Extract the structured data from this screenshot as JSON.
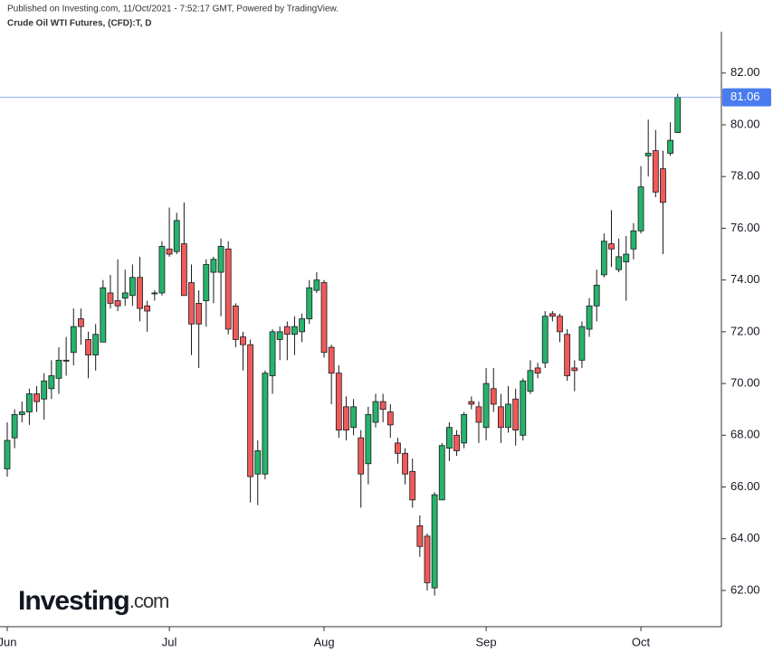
{
  "chart_data": {
    "type": "candlestick",
    "published": "Published on Investing.com, 11/Oct/2021 - 7:52:17 GMT, Powered by TradingView.",
    "title": "Crude Oil WTI Futures, (CFD):T, D",
    "brand": "Investing",
    "brand_suffix": ".com",
    "up_color": "#26b36d",
    "down_color": "#ef5a5a",
    "outline_color": "#1a1a1a",
    "price_line": 81.06,
    "price_line_color": "#4a7cf0",
    "categories": [
      "Jun",
      null,
      null,
      null,
      null,
      null,
      null,
      null,
      null,
      null,
      null,
      null,
      null,
      null,
      null,
      null,
      null,
      null,
      null,
      null,
      null,
      null,
      "Jul",
      null,
      null,
      null,
      null,
      null,
      null,
      null,
      null,
      null,
      null,
      null,
      null,
      null,
      null,
      null,
      null,
      null,
      null,
      null,
      null,
      "Aug",
      null,
      null,
      null,
      null,
      null,
      null,
      null,
      null,
      null,
      null,
      null,
      null,
      null,
      null,
      null,
      null,
      null,
      null,
      null,
      null,
      null,
      "Sep",
      null,
      null,
      null,
      null,
      null,
      null,
      null,
      null,
      null,
      null,
      null,
      null,
      null,
      null,
      null,
      null,
      null,
      null,
      null,
      null,
      "Oct",
      null,
      null,
      null,
      null,
      null
    ],
    "open": [
      66.7,
      67.9,
      68.8,
      68.9,
      69.6,
      69.4,
      69.8,
      70.2,
      70.9,
      71.2,
      72.5,
      71.7,
      71.1,
      71.6,
      73.5,
      73.2,
      73.3,
      73.4,
      74.1,
      73.0,
      73.5,
      73.5,
      75.2,
      75.1,
      75.4,
      73.9,
      73.1,
      73.2,
      74.3,
      74.3,
      75.2,
      73.0,
      71.8,
      71.5,
      66.5,
      66.5,
      70.3,
      71.7,
      72.2,
      71.9,
      72.0,
      72.5,
      73.6,
      73.9,
      71.4,
      70.4,
      69.1,
      68.3,
      67.9,
      66.9,
      68.5,
      69.3,
      68.9,
      67.7,
      67.3,
      66.6,
      64.5,
      64.1,
      62.1,
      65.5,
      67.5,
      68.0,
      67.7,
      69.3,
      69.1,
      68.3,
      69.8,
      69.1,
      68.3,
      69.4,
      68.0,
      69.7,
      70.6,
      70.8,
      72.7,
      72.6,
      71.9,
      70.6,
      70.9,
      72.1,
      73.0,
      74.2,
      75.4,
      74.4,
      74.7,
      75.2,
      75.9,
      78.8,
      79.0,
      78.3,
      78.9,
      79.7
    ],
    "high": [
      68.5,
      69.0,
      69.3,
      69.8,
      69.9,
      70.4,
      70.9,
      71.4,
      71.8,
      72.9,
      72.9,
      72.0,
      72.3,
      74.0,
      74.2,
      74.8,
      74.4,
      74.6,
      74.9,
      73.2,
      73.6,
      75.5,
      76.8,
      76.6,
      77.0,
      74.6,
      73.6,
      74.8,
      74.9,
      75.6,
      75.5,
      73.1,
      72.0,
      71.7,
      67.8,
      70.5,
      72.1,
      72.2,
      72.4,
      72.6,
      72.7,
      74.0,
      74.3,
      74.0,
      71.5,
      70.7,
      69.5,
      69.4,
      68.2,
      69.1,
      69.6,
      69.6,
      69.2,
      67.9,
      67.5,
      67.1,
      64.9,
      64.2,
      65.8,
      67.7,
      68.5,
      68.2,
      68.9,
      69.5,
      69.3,
      70.6,
      70.6,
      69.6,
      69.9,
      69.8,
      70.2,
      70.9,
      70.8,
      72.8,
      72.8,
      72.7,
      72.1,
      70.9,
      72.4,
      73.3,
      74.4,
      75.8,
      76.7,
      75.6,
      75.7,
      76.2,
      78.4,
      80.2,
      79.8,
      79.0,
      80.1,
      81.2
    ],
    "low": [
      66.4,
      67.5,
      68.5,
      68.4,
      68.9,
      68.6,
      69.4,
      69.6,
      70.3,
      70.7,
      71.5,
      70.2,
      70.5,
      71.6,
      72.9,
      72.8,
      73.0,
      73.0,
      72.4,
      72.0,
      73.2,
      73.4,
      74.9,
      75.0,
      73.4,
      71.1,
      70.6,
      72.2,
      73.1,
      72.6,
      71.9,
      71.4,
      70.5,
      65.4,
      65.3,
      66.3,
      69.6,
      70.9,
      70.9,
      71.1,
      71.6,
      72.3,
      73.5,
      71.0,
      69.2,
      67.9,
      67.8,
      68.0,
      65.2,
      66.1,
      68.3,
      68.5,
      67.9,
      66.9,
      66.1,
      65.2,
      63.3,
      62.0,
      61.8,
      65.5,
      67.0,
      67.2,
      67.5,
      69.0,
      67.7,
      67.8,
      68.9,
      67.7,
      68.1,
      67.6,
      67.8,
      69.6,
      70.2,
      70.6,
      72.4,
      71.6,
      70.1,
      69.7,
      70.6,
      71.8,
      72.4,
      74.1,
      74.5,
      74.3,
      73.2,
      74.8,
      75.8,
      78.0,
      77.2,
      75.0,
      78.8,
      79.7
    ],
    "close": [
      67.8,
      68.8,
      68.9,
      69.6,
      69.3,
      70.1,
      70.3,
      70.9,
      70.9,
      72.2,
      72.2,
      71.1,
      71.9,
      73.7,
      73.1,
      73.0,
      73.5,
      74.1,
      72.9,
      72.8,
      73.5,
      75.3,
      75.0,
      76.3,
      73.4,
      72.3,
      72.3,
      74.6,
      74.8,
      75.3,
      72.1,
      71.7,
      71.5,
      66.4,
      67.4,
      70.4,
      72.0,
      72.0,
      71.9,
      72.2,
      72.5,
      73.7,
      74.0,
      71.2,
      70.4,
      68.2,
      68.2,
      69.1,
      66.5,
      68.8,
      69.3,
      69.0,
      68.4,
      67.3,
      66.5,
      65.5,
      63.7,
      62.3,
      65.7,
      67.6,
      68.3,
      67.4,
      68.8,
      69.2,
      68.5,
      70.0,
      69.2,
      68.3,
      69.2,
      68.2,
      70.1,
      70.5,
      70.4,
      72.6,
      72.6,
      72.0,
      70.3,
      70.5,
      72.2,
      73.0,
      73.8,
      75.5,
      75.2,
      74.9,
      75.0,
      75.9,
      77.6,
      78.9,
      77.4,
      77.0,
      79.4,
      81.06
    ],
    "ylim": [
      60.6,
      83.6
    ],
    "yticks": [
      {
        "value": 62,
        "label": "62.00"
      },
      {
        "value": 64,
        "label": "64.00"
      },
      {
        "value": 66,
        "label": "66.00"
      },
      {
        "value": 68,
        "label": "68.00"
      },
      {
        "value": 70,
        "label": "70.00"
      },
      {
        "value": 72,
        "label": "72.00"
      },
      {
        "value": 74,
        "label": "74.00"
      },
      {
        "value": 76,
        "label": "76.00"
      },
      {
        "value": 78,
        "label": "78.00"
      },
      {
        "value": 80,
        "label": "80.00"
      },
      {
        "value": 82,
        "label": "82.00"
      }
    ]
  }
}
